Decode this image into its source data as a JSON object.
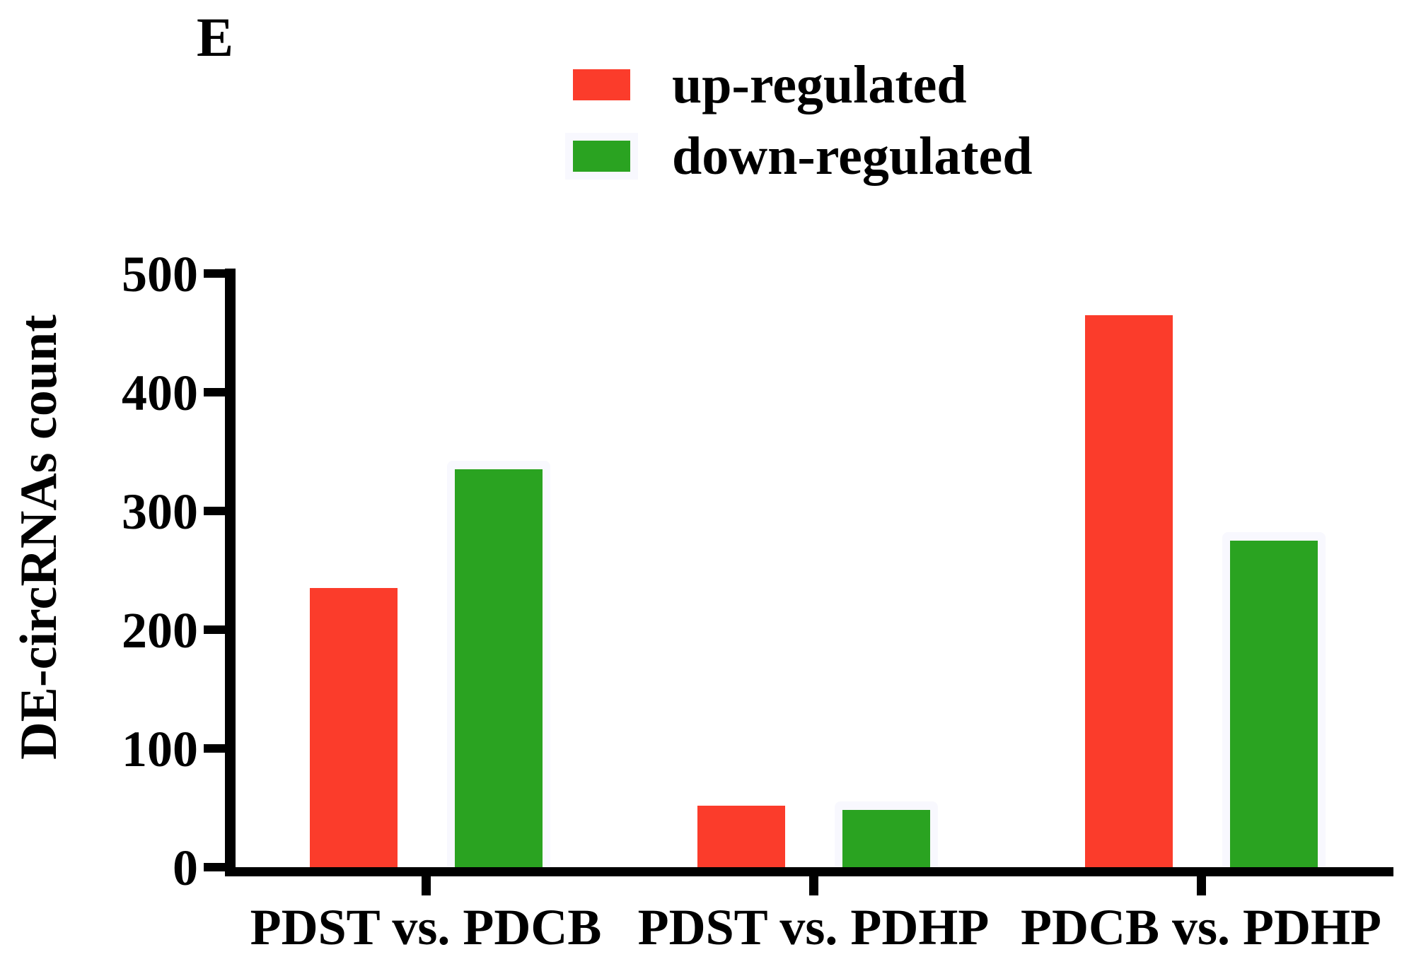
{
  "panel_label": "E",
  "legend": {
    "items": [
      {
        "label": "up-regulated",
        "series": "up",
        "color": "#fb3c2b",
        "has_backdrop": false
      },
      {
        "label": "down-regulated",
        "series": "down",
        "color": "#2aa321",
        "has_backdrop": true
      }
    ]
  },
  "axes": {
    "y_title": "DE-circRNAs count"
  },
  "colors": {
    "up": "#fb3c2b",
    "down": "#2aa321",
    "axis": "#000000",
    "background": "#ffffff",
    "green_backdrop": "#f8f8fe"
  },
  "chart_data": {
    "type": "bar",
    "title": "",
    "categories": [
      "PDST vs. PDCB",
      "PDST vs. PDHP",
      "PDCB vs. PDHP"
    ],
    "series": [
      {
        "name": "up-regulated",
        "color": "#fb3c2b",
        "values": [
          235,
          52,
          465
        ]
      },
      {
        "name": "down-regulated",
        "color": "#2aa321",
        "values": [
          335,
          48,
          275
        ]
      }
    ],
    "xlabel": "",
    "ylabel": "DE-circRNAs count",
    "ylim": [
      0,
      500
    ],
    "yticks": [
      0,
      100,
      200,
      300,
      400,
      500
    ],
    "grid": false,
    "legend_position": "top-center"
  }
}
